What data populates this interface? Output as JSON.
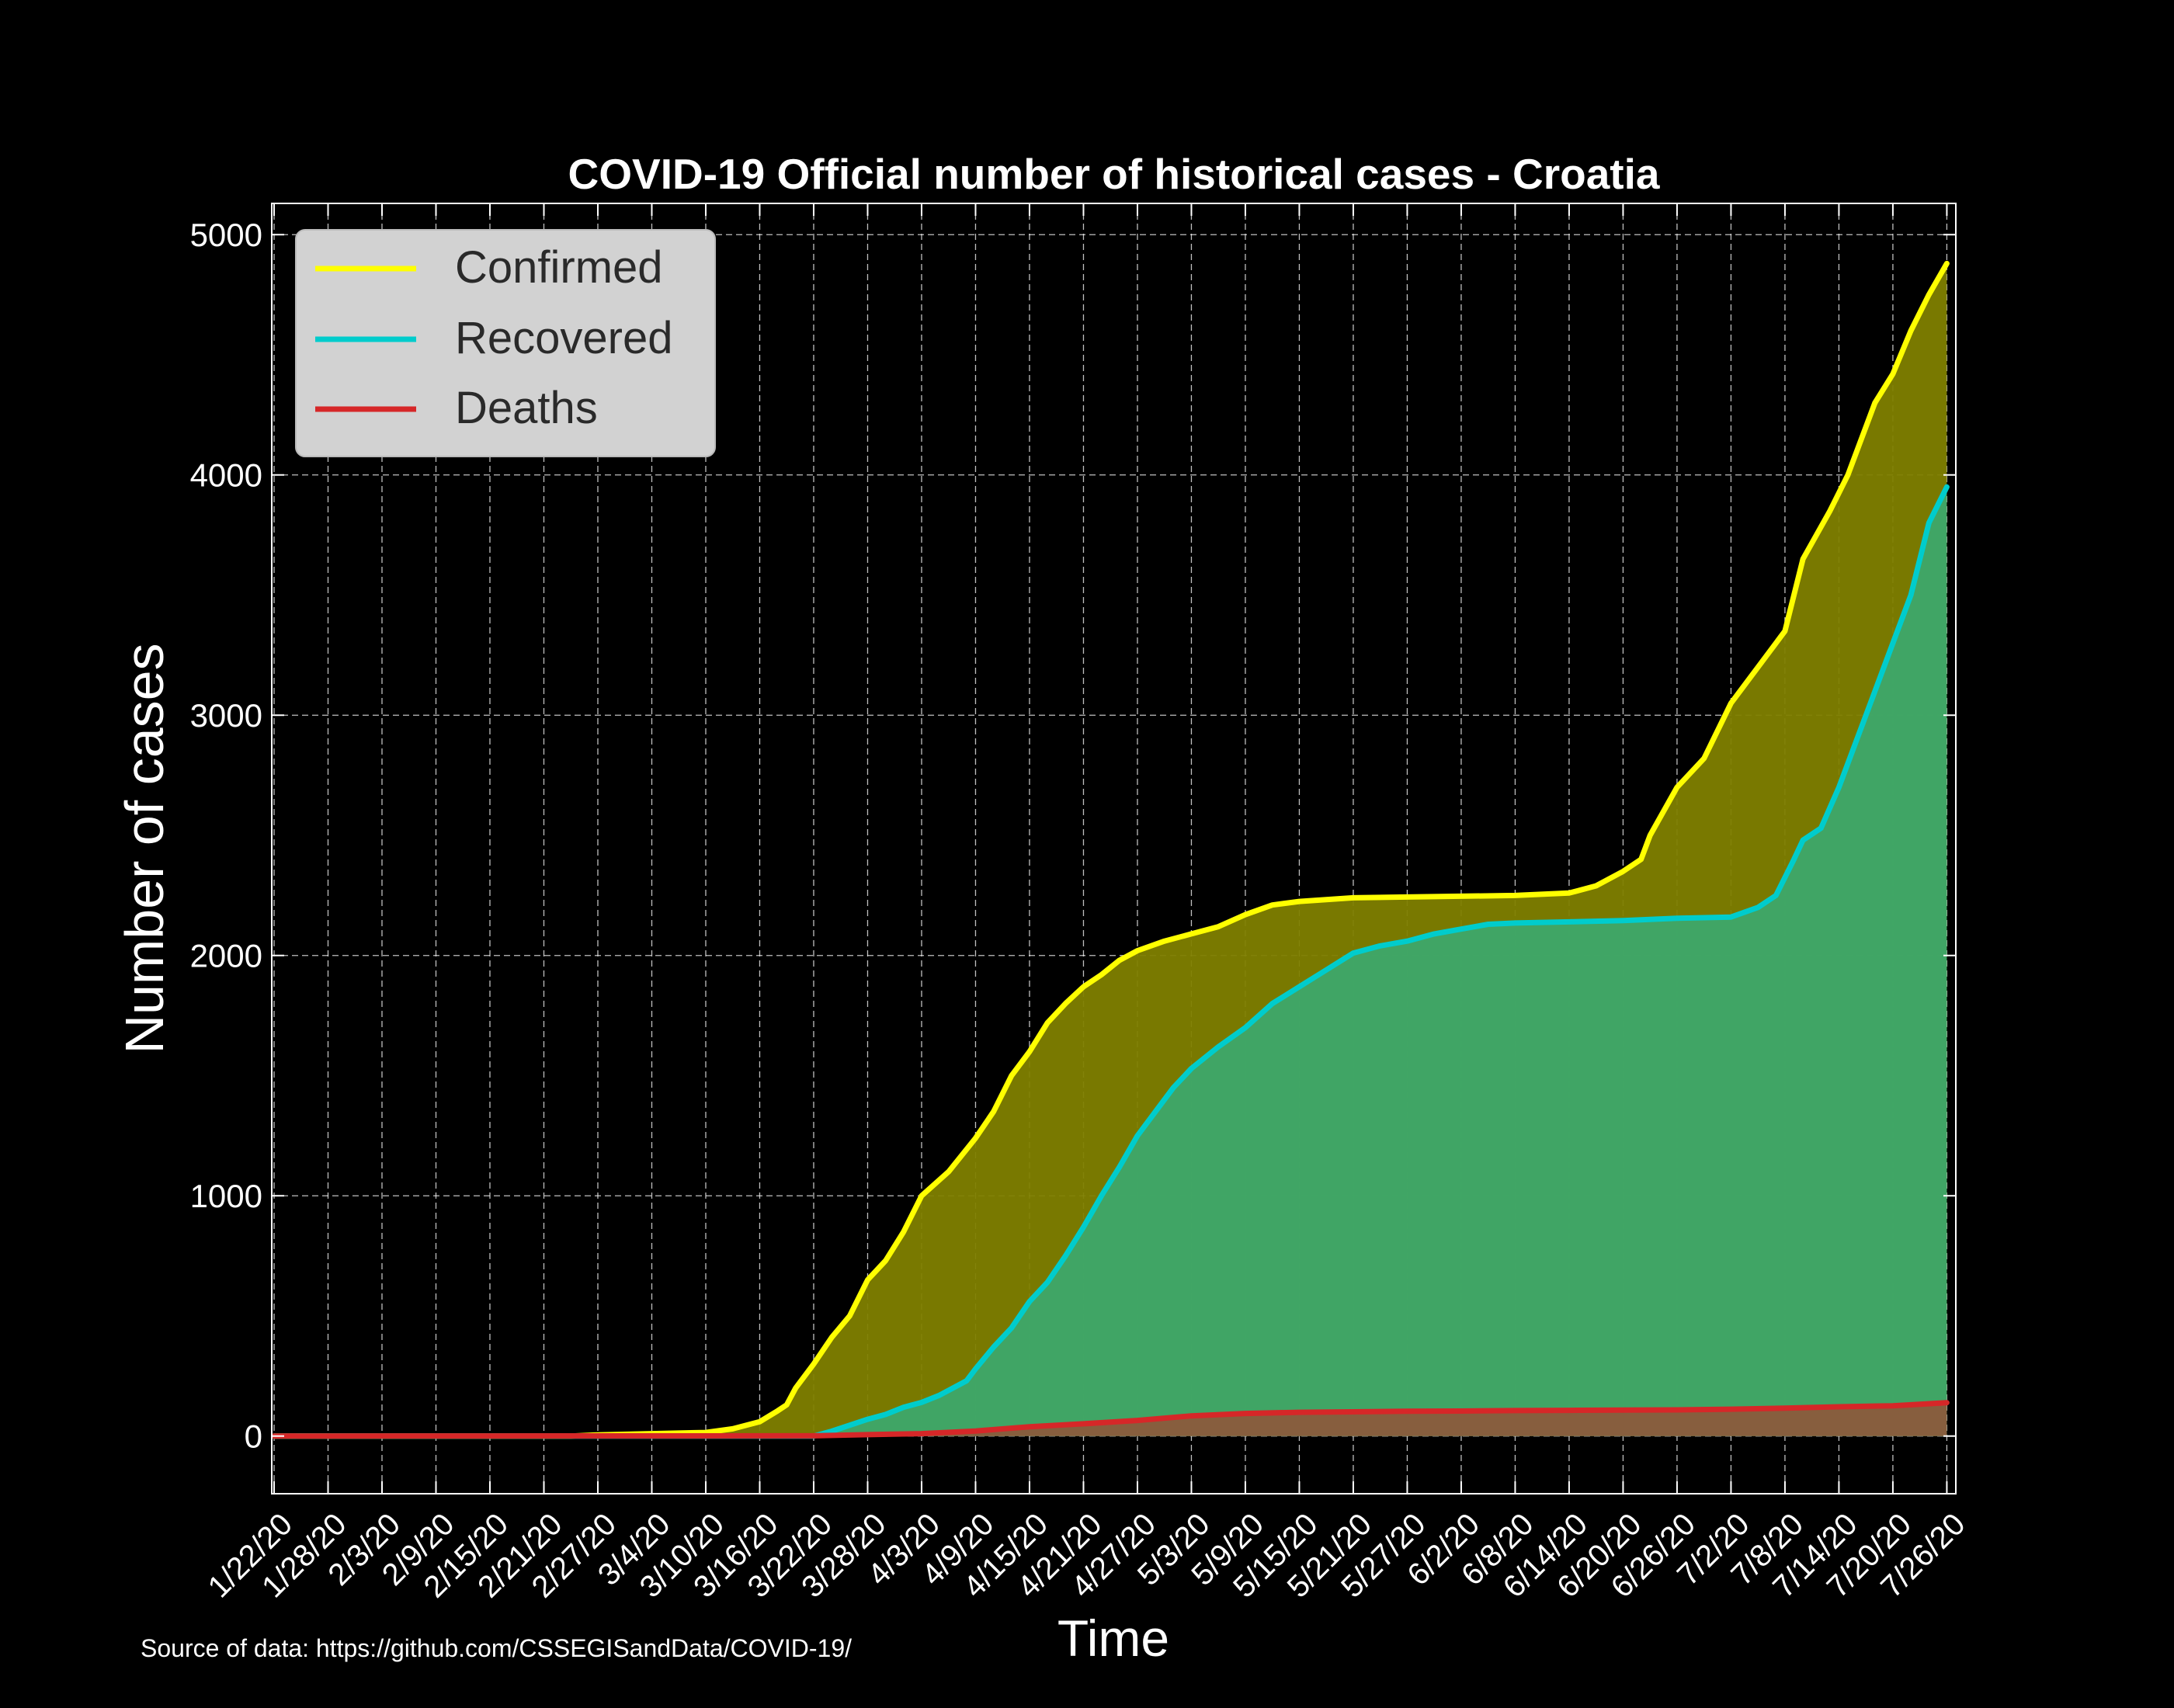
{
  "chart_data": {
    "type": "area",
    "title": "COVID-19 Official number of historical cases - Croatia",
    "xlabel": "Time",
    "ylabel": "Number of cases",
    "source_note": "Source of data: https://github.com/CSSEGISandData/COVID-19/",
    "xlim": [
      "2020-01-22",
      "2020-07-26"
    ],
    "ylim": [
      -240,
      5130
    ],
    "yticks": [
      0,
      1000,
      2000,
      3000,
      4000,
      5000
    ],
    "xtick_labels": [
      "1/22/20",
      "1/28/20",
      "2/3/20",
      "2/9/20",
      "2/15/20",
      "2/21/20",
      "2/27/20",
      "3/4/20",
      "3/10/20",
      "3/16/20",
      "3/22/20",
      "3/28/20",
      "4/3/20",
      "4/9/20",
      "4/15/20",
      "4/21/20",
      "4/27/20",
      "5/3/20",
      "5/9/20",
      "5/15/20",
      "5/21/20",
      "5/27/20",
      "6/2/20",
      "6/8/20",
      "6/14/20",
      "6/20/20",
      "6/26/20",
      "7/2/20",
      "7/8/20",
      "7/14/20",
      "7/20/20",
      "7/26/20"
    ],
    "grid": true,
    "legend_position": "top-left",
    "series": [
      {
        "name": "Confirmed",
        "line_color": "#ffff00",
        "fill_color": "#808000",
        "points": [
          [
            "1/22/20",
            0
          ],
          [
            "2/24/20",
            0
          ],
          [
            "2/27/20",
            5
          ],
          [
            "3/4/20",
            10
          ],
          [
            "3/10/20",
            15
          ],
          [
            "3/13/20",
            30
          ],
          [
            "3/16/20",
            60
          ],
          [
            "3/18/20",
            105
          ],
          [
            "3/19/20",
            130
          ],
          [
            "3/20/20",
            200
          ],
          [
            "3/22/20",
            300
          ],
          [
            "3/24/20",
            410
          ],
          [
            "3/26/20",
            500
          ],
          [
            "3/28/20",
            650
          ],
          [
            "3/30/20",
            730
          ],
          [
            "4/1/20",
            850
          ],
          [
            "4/3/20",
            1000
          ],
          [
            "4/6/20",
            1100
          ],
          [
            "4/9/20",
            1240
          ],
          [
            "4/11/20",
            1350
          ],
          [
            "4/13/20",
            1500
          ],
          [
            "4/15/20",
            1600
          ],
          [
            "4/17/20",
            1720
          ],
          [
            "4/19/20",
            1800
          ],
          [
            "4/21/20",
            1870
          ],
          [
            "4/23/20",
            1920
          ],
          [
            "4/25/20",
            1980
          ],
          [
            "4/27/20",
            2020
          ],
          [
            "4/30/20",
            2060
          ],
          [
            "5/3/20",
            2090
          ],
          [
            "5/6/20",
            2120
          ],
          [
            "5/9/20",
            2170
          ],
          [
            "5/12/20",
            2210
          ],
          [
            "5/15/20",
            2225
          ],
          [
            "5/21/20",
            2240
          ],
          [
            "6/8/20",
            2250
          ],
          [
            "6/14/20",
            2260
          ],
          [
            "6/17/20",
            2290
          ],
          [
            "6/20/20",
            2350
          ],
          [
            "6/22/20",
            2400
          ],
          [
            "6/23/20",
            2500
          ],
          [
            "6/26/20",
            2700
          ],
          [
            "6/29/20",
            2820
          ],
          [
            "7/2/20",
            3050
          ],
          [
            "7/5/20",
            3200
          ],
          [
            "7/8/20",
            3350
          ],
          [
            "7/10/20",
            3650
          ],
          [
            "7/13/20",
            3850
          ],
          [
            "7/15/20",
            4000
          ],
          [
            "7/18/20",
            4300
          ],
          [
            "7/20/20",
            4420
          ],
          [
            "7/22/20",
            4600
          ],
          [
            "7/24/20",
            4750
          ],
          [
            "7/26/20",
            4880
          ]
        ]
      },
      {
        "name": "Recovered",
        "line_color": "#00cccc",
        "fill_color": "#3da86a",
        "points": [
          [
            "1/22/20",
            0
          ],
          [
            "3/22/20",
            0
          ],
          [
            "3/24/20",
            20
          ],
          [
            "3/28/20",
            70
          ],
          [
            "3/30/20",
            90
          ],
          [
            "4/1/20",
            120
          ],
          [
            "4/3/20",
            140
          ],
          [
            "4/5/20",
            170
          ],
          [
            "4/8/20",
            230
          ],
          [
            "4/9/20",
            280
          ],
          [
            "4/11/20",
            370
          ],
          [
            "4/13/20",
            450
          ],
          [
            "4/15/20",
            560
          ],
          [
            "4/17/20",
            640
          ],
          [
            "4/19/20",
            750
          ],
          [
            "4/21/20",
            870
          ],
          [
            "4/23/20",
            1000
          ],
          [
            "4/25/20",
            1120
          ],
          [
            "4/27/20",
            1250
          ],
          [
            "4/29/20",
            1350
          ],
          [
            "5/1/20",
            1450
          ],
          [
            "5/3/20",
            1530
          ],
          [
            "5/6/20",
            1620
          ],
          [
            "5/9/20",
            1700
          ],
          [
            "5/12/20",
            1800
          ],
          [
            "5/15/20",
            1870
          ],
          [
            "5/18/20",
            1940
          ],
          [
            "5/21/20",
            2010
          ],
          [
            "5/24/20",
            2040
          ],
          [
            "5/27/20",
            2060
          ],
          [
            "5/30/20",
            2090
          ],
          [
            "6/2/20",
            2110
          ],
          [
            "6/5/20",
            2130
          ],
          [
            "6/8/20",
            2135
          ],
          [
            "6/14/20",
            2140
          ],
          [
            "6/20/20",
            2145
          ],
          [
            "6/26/20",
            2155
          ],
          [
            "7/2/20",
            2160
          ],
          [
            "7/5/20",
            2200
          ],
          [
            "7/7/20",
            2250
          ],
          [
            "7/9/20",
            2400
          ],
          [
            "7/10/20",
            2480
          ],
          [
            "7/12/20",
            2530
          ],
          [
            "7/14/20",
            2700
          ],
          [
            "7/16/20",
            2900
          ],
          [
            "7/18/20",
            3100
          ],
          [
            "7/20/20",
            3300
          ],
          [
            "7/22/20",
            3500
          ],
          [
            "7/24/20",
            3800
          ],
          [
            "7/26/20",
            3950
          ]
        ]
      },
      {
        "name": "Deaths",
        "line_color": "#d62728",
        "fill_color": "#8b5a3c",
        "points": [
          [
            "1/22/20",
            0
          ],
          [
            "3/22/20",
            1
          ],
          [
            "3/28/20",
            6
          ],
          [
            "4/3/20",
            10
          ],
          [
            "4/9/20",
            21
          ],
          [
            "4/15/20",
            39
          ],
          [
            "4/21/20",
            51
          ],
          [
            "4/27/20",
            65
          ],
          [
            "5/3/20",
            84
          ],
          [
            "5/9/20",
            94
          ],
          [
            "5/15/20",
            99
          ],
          [
            "5/21/20",
            101
          ],
          [
            "5/27/20",
            103
          ],
          [
            "6/2/20",
            104
          ],
          [
            "6/8/20",
            106
          ],
          [
            "6/14/20",
            107
          ],
          [
            "6/20/20",
            108
          ],
          [
            "6/26/20",
            109
          ],
          [
            "7/2/20",
            112
          ],
          [
            "7/8/20",
            116
          ],
          [
            "7/14/20",
            122
          ],
          [
            "7/20/20",
            126
          ],
          [
            "7/26/20",
            139
          ]
        ]
      }
    ]
  }
}
